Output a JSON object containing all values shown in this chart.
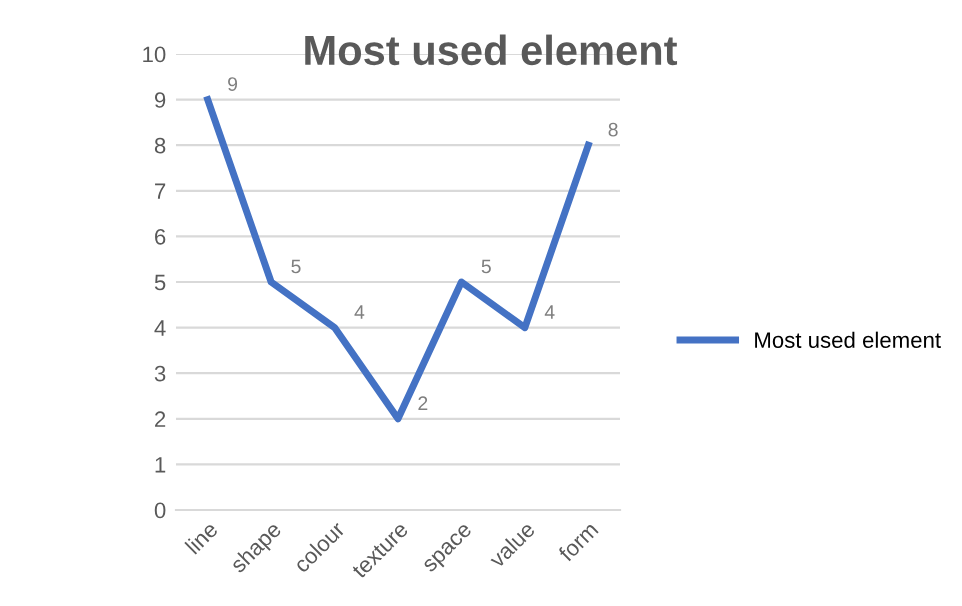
{
  "chart_data": {
    "type": "line",
    "title": "Most used element",
    "categories": [
      "line",
      "shape",
      "colour",
      "texture",
      "space",
      "value",
      "form"
    ],
    "series": [
      {
        "name": "Most used element",
        "color": "#4472c4",
        "values": [
          9,
          5,
          4,
          2,
          5,
          4,
          8
        ]
      }
    ],
    "ylim": [
      0,
      10
    ],
    "yticks": [
      0,
      1,
      2,
      3,
      4,
      5,
      6,
      7,
      8,
      9,
      10
    ],
    "grid": "y",
    "legend": "right",
    "data_labels": true,
    "marker": "none",
    "line_style": "solid"
  }
}
